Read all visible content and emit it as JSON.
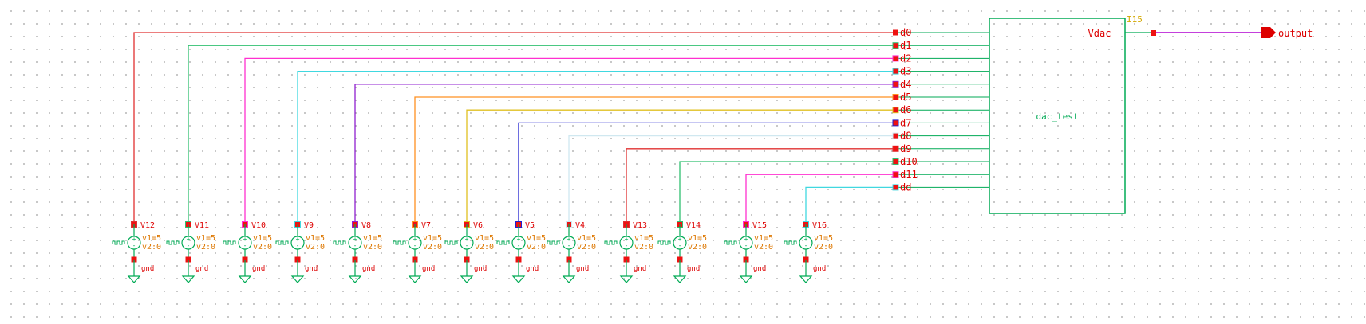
{
  "schematic": {
    "instance": {
      "id": "I15",
      "cell_name": "dac_test",
      "output_pin": "Vdac",
      "border_color": "#00aa55"
    },
    "output_port": {
      "label": "output",
      "color": "#dd0000",
      "wire_color": "#b000d0"
    },
    "inputs": [
      {
        "pin": "d0",
        "source": "V12",
        "wire_color": "#e03030"
      },
      {
        "pin": "d1",
        "source": "V11",
        "wire_color": "#30c070"
      },
      {
        "pin": "d2",
        "source": "V10",
        "wire_color": "#ff30d0"
      },
      {
        "pin": "d3",
        "source": "V9",
        "wire_color": "#40d8e0"
      },
      {
        "pin": "d4",
        "source": "V8",
        "wire_color": "#9020d0"
      },
      {
        "pin": "d5",
        "source": "V7",
        "wire_color": "#ff9020"
      },
      {
        "pin": "d6",
        "source": "V6",
        "wire_color": "#e0c020"
      },
      {
        "pin": "d7",
        "source": "V5",
        "wire_color": "#2020d0"
      },
      {
        "pin": "d8",
        "source": "V4",
        "wire_color": "#d0e8f0"
      },
      {
        "pin": "d9",
        "source": "V13",
        "wire_color": "#e03030"
      },
      {
        "pin": "d10",
        "source": "V14",
        "wire_color": "#30c070"
      },
      {
        "pin": "d11",
        "source": "V15",
        "wire_color": "#ff30d0"
      },
      {
        "pin": "dd",
        "source": "V16",
        "wire_color": "#40d8e0"
      }
    ],
    "source_params": {
      "v1": "v1=5",
      "v2": "v2:0"
    },
    "ground_label": "gnd",
    "colors": {
      "pin_marker": "#ee1111",
      "source_symbol": "#00aa55",
      "ground_symbol": "#00aa55",
      "pin_text": "#dd0000",
      "param_text": "#dd7700"
    }
  }
}
